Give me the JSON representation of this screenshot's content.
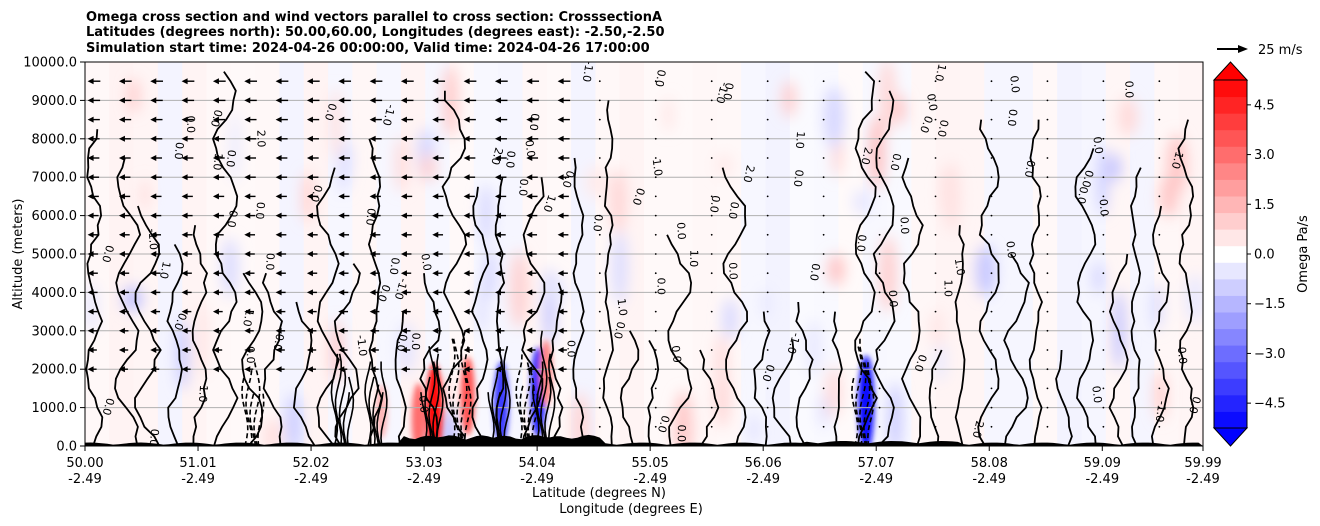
{
  "chart_data": {
    "type": "contour",
    "title_lines": [
      "Omega cross section and wind vectors parallel to cross section: CrosssectionA",
      "Latitudes (degrees north): 50.00,60.00, Longitudes (degrees east): -2.50,-2.50",
      "Simulation start time: 2024-04-26 00:00:00, Valid time: 2024-04-26 17:00:00"
    ],
    "xlabel": "Latitude (degrees N)",
    "xlabel2": "Longitude (degrees E)",
    "ylabel": "Altitude (meters)",
    "ylim": [
      0,
      10000
    ],
    "y_ticks": [
      0,
      1000,
      2000,
      3000,
      4000,
      5000,
      6000,
      7000,
      8000,
      9000,
      10000
    ],
    "y_tick_labels": [
      "0.0",
      "1000.0",
      "2000.0",
      "3000.0",
      "4000.0",
      "5000.0",
      "6000.0",
      "7000.0",
      "8000.0",
      "9000.0",
      "10000.0"
    ],
    "xlim": [
      50.0,
      59.99
    ],
    "x_ticks": [
      {
        "lat": 50.0,
        "lat_label": "50.00",
        "lon_label": "-2.49"
      },
      {
        "lat": 51.01,
        "lat_label": "51.01",
        "lon_label": "-2.49"
      },
      {
        "lat": 52.02,
        "lat_label": "52.02",
        "lon_label": "-2.49"
      },
      {
        "lat": 53.03,
        "lat_label": "53.03",
        "lon_label": "-2.49"
      },
      {
        "lat": 54.04,
        "lat_label": "54.04",
        "lon_label": "-2.49"
      },
      {
        "lat": 55.05,
        "lat_label": "55.05",
        "lon_label": "-2.49"
      },
      {
        "lat": 56.06,
        "lat_label": "56.06",
        "lon_label": "-2.49"
      },
      {
        "lat": 57.07,
        "lat_label": "57.07",
        "lon_label": "-2.49"
      },
      {
        "lat": 58.08,
        "lat_label": "58.08",
        "lon_label": "-2.49"
      },
      {
        "lat": 59.09,
        "lat_label": "59.09",
        "lon_label": "-2.49"
      },
      {
        "lat": 59.99,
        "lat_label": "59.99",
        "lon_label": "-2.49"
      }
    ],
    "colorbar": {
      "label": "Omega Pa/s",
      "range": [
        -5.25,
        5.25
      ],
      "levels": 21,
      "ticks": [
        -4.5,
        -3.0,
        -1.5,
        0.0,
        1.5,
        3.0,
        4.5
      ],
      "tick_labels": [
        "−4.5",
        "−3.0",
        "−1.5",
        "0.0",
        "1.5",
        "3.0",
        "4.5"
      ],
      "colormap": "bwr",
      "extend": "both"
    },
    "quiver_key": {
      "label": "25 m/s",
      "speed": 25
    },
    "contour_labels": [
      "0.0",
      "1.0",
      "-1.0",
      "2.0"
    ],
    "omega_features": [
      {
        "lat": 53.12,
        "alt": 900,
        "omega": 5.0
      },
      {
        "lat": 53.42,
        "alt": 1300,
        "omega": 3.5
      },
      {
        "lat": 53.72,
        "alt": 1100,
        "omega": -4.0
      },
      {
        "lat": 54.05,
        "alt": 1400,
        "omega": -4.5
      },
      {
        "lat": 54.12,
        "alt": 1900,
        "omega": 2.5
      },
      {
        "lat": 56.98,
        "alt": 1100,
        "omega": -5.0
      },
      {
        "lat": 52.65,
        "alt": 900,
        "omega": 1.5
      },
      {
        "lat": 52.98,
        "alt": 700,
        "omega": 3.0
      }
    ],
    "wind_vectors_note": "westward wind vectors near lat 50.0-54.4 at altitudes 2000-9800 m"
  },
  "colors": {
    "positive": "#ff0000",
    "negative": "#0000ff",
    "neutral": "#ffffff",
    "contour": "#000000",
    "terrain": "#000000"
  }
}
